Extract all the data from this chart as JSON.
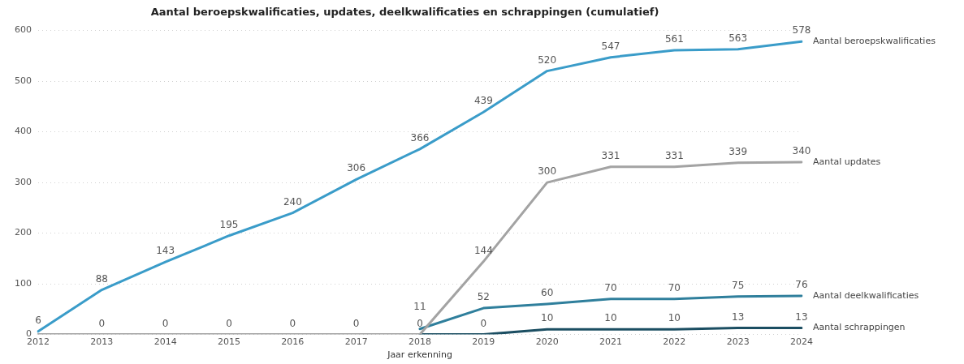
{
  "chart_data": {
    "type": "line",
    "title": "Aantal beroepskwalificaties, updates, deelkwalificaties en schrappingen (cumulatief)",
    "xlabel": "Jaar erkenning",
    "categories": [
      "2012",
      "2013",
      "2014",
      "2015",
      "2016",
      "2017",
      "2018",
      "2019",
      "2020",
      "2021",
      "2022",
      "2023",
      "2024"
    ],
    "ylim": [
      0,
      600
    ],
    "yticks": [
      0,
      100,
      200,
      300,
      400,
      500,
      600
    ],
    "grid": "y",
    "legend": false,
    "marker": "none",
    "line_style": "solid",
    "series": [
      {
        "name": "Aantal beroepskwalificaties",
        "color": "#3a9cc9",
        "values": [
          6,
          88,
          143,
          195,
          240,
          306,
          366,
          439,
          520,
          547,
          561,
          563,
          578
        ],
        "value_labels": [
          "6",
          "88",
          "143",
          "195",
          "240",
          "306",
          "366",
          "439",
          "520",
          "547",
          "561",
          "563",
          "578"
        ]
      },
      {
        "name": "Aantal updates",
        "color": "#a3a3a3",
        "values": [
          0,
          0,
          0,
          0,
          0,
          0,
          0,
          144,
          300,
          331,
          331,
          339,
          340
        ],
        "value_labels": [
          null,
          "0",
          "0",
          "0",
          "0",
          "0",
          "0",
          "144",
          "300",
          "331",
          "331",
          "339",
          "340"
        ]
      },
      {
        "name": "Aantal deelkwalificaties",
        "color": "#2f7f9c",
        "values": [
          null,
          null,
          null,
          null,
          null,
          null,
          11,
          52,
          60,
          70,
          70,
          75,
          76
        ],
        "value_labels": [
          null,
          null,
          null,
          null,
          null,
          null,
          "11",
          "52",
          "60",
          "70",
          "70",
          "75",
          "76"
        ]
      },
      {
        "name": "Aantal schrappingen",
        "color": "#1b4e62",
        "values": [
          null,
          null,
          null,
          null,
          null,
          null,
          0,
          0,
          10,
          10,
          10,
          13,
          13
        ],
        "value_labels": [
          null,
          null,
          null,
          null,
          null,
          null,
          null,
          "0",
          "10",
          "10",
          "10",
          "13",
          "13"
        ]
      }
    ]
  }
}
